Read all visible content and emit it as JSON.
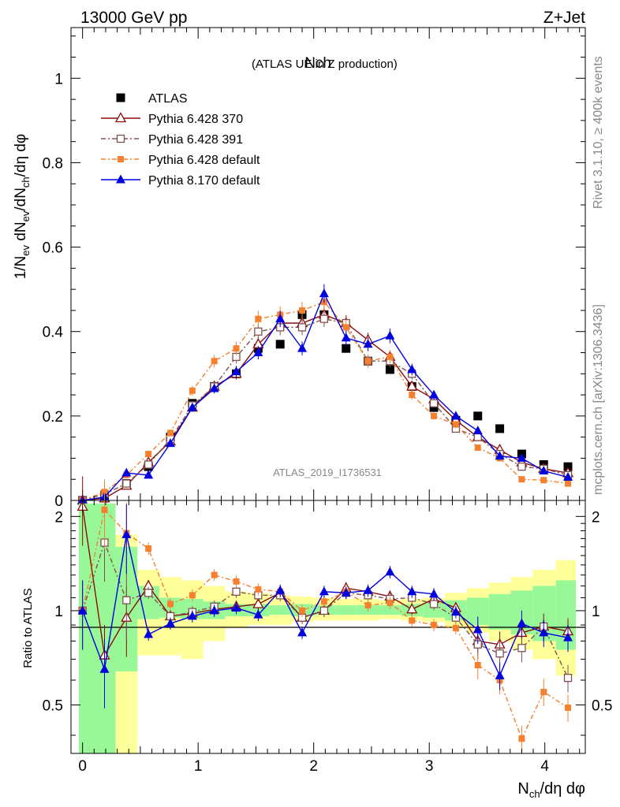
{
  "header": {
    "left": "13000 GeV pp",
    "right": "Z+Jet"
  },
  "side_labels": {
    "rivet": "Rivet 3.1.10, ≥ 400k events",
    "mcplots": "mcplots.cern.ch [arXiv:1306.3436]"
  },
  "chart_data": [
    {
      "type": "line",
      "title_main": "Nch",
      "title_sub": "(ATLAS UE in Z production)",
      "watermark": "ATLAS_2019_I1736531",
      "ylabel": "1/N_ev dN_ev/dN_ch/dη dφ",
      "xlabel": "N_ch/dη dφ",
      "xlim": [
        -0.1,
        4.35
      ],
      "ylim": [
        0,
        1.12
      ],
      "yticks": [
        "0",
        "0.2",
        "0.4",
        "0.6",
        "0.8",
        "1"
      ],
      "ytick_values": [
        0,
        0.2,
        0.4,
        0.6,
        0.8,
        1
      ],
      "xticks": [
        "0",
        "1",
        "2",
        "3",
        "4"
      ],
      "xtick_values": [
        0,
        1,
        2,
        3,
        4
      ],
      "x": [
        0.0,
        0.19,
        0.38,
        0.57,
        0.76,
        0.95,
        1.14,
        1.33,
        1.52,
        1.71,
        1.9,
        2.09,
        2.28,
        2.47,
        2.66,
        2.85,
        3.04,
        3.23,
        3.42,
        3.61,
        3.8,
        3.99,
        4.2
      ],
      "series": [
        {
          "name": "ATLAS",
          "style": "data",
          "values": [
            0.0,
            0.01,
            0.04,
            0.08,
            0.15,
            0.23,
            0.27,
            0.3,
            0.36,
            0.37,
            0.44,
            0.44,
            0.36,
            0.33,
            0.31,
            0.27,
            0.22,
            0.19,
            0.2,
            0.17,
            0.11,
            0.085,
            0.08
          ]
        },
        {
          "name": "Pythia 6.428 370",
          "style": "p370",
          "values": [
            0.0,
            0.005,
            0.035,
            0.09,
            0.14,
            0.22,
            0.27,
            0.3,
            0.37,
            0.42,
            0.42,
            0.44,
            0.42,
            0.38,
            0.34,
            0.27,
            0.24,
            0.19,
            0.15,
            0.12,
            0.09,
            0.075,
            0.065
          ]
        },
        {
          "name": "Pythia 6.428 391",
          "style": "p391",
          "values": [
            0.0,
            0.015,
            0.04,
            0.085,
            0.145,
            0.225,
            0.27,
            0.34,
            0.4,
            0.41,
            0.41,
            0.43,
            0.42,
            0.33,
            0.33,
            0.3,
            0.23,
            0.17,
            0.15,
            0.11,
            0.08,
            0.075,
            0.06
          ]
        },
        {
          "name": "Pythia 6.428 default",
          "style": "pdef",
          "values": [
            0.0,
            0.02,
            0.06,
            0.11,
            0.16,
            0.26,
            0.33,
            0.36,
            0.43,
            0.44,
            0.45,
            0.47,
            0.41,
            0.33,
            0.34,
            0.25,
            0.2,
            0.18,
            0.125,
            0.1,
            0.05,
            0.048,
            0.04
          ]
        },
        {
          "name": "Pythia 8.170 default",
          "style": "p8",
          "values": [
            0.0,
            0.008,
            0.065,
            0.06,
            0.135,
            0.22,
            0.265,
            0.305,
            0.35,
            0.43,
            0.36,
            0.49,
            0.385,
            0.37,
            0.39,
            0.31,
            0.25,
            0.2,
            0.165,
            0.105,
            0.1,
            0.07,
            0.055
          ]
        }
      ]
    },
    {
      "type": "line",
      "ylabel": "Ratio to ATLAS",
      "ylim": [
        0.35,
        2.25
      ],
      "yticks": [
        "0.5",
        "1",
        "2"
      ],
      "ytick_values": [
        0.5,
        1,
        2
      ],
      "x": [
        0.0,
        0.19,
        0.38,
        0.57,
        0.76,
        0.95,
        1.14,
        1.33,
        1.52,
        1.71,
        1.9,
        2.09,
        2.28,
        2.47,
        2.66,
        2.85,
        3.04,
        3.23,
        3.42,
        3.61,
        3.8,
        3.99,
        4.2
      ],
      "band_green": [
        [
          0.3,
          2.2
        ],
        [
          0.3,
          2.2
        ],
        [
          0.64,
          1.6
        ],
        [
          0.94,
          1.2
        ],
        [
          0.95,
          1.1
        ],
        [
          0.94,
          1.09
        ],
        [
          0.94,
          1.07
        ],
        [
          0.96,
          1.05
        ],
        [
          0.96,
          1.05
        ],
        [
          0.97,
          1.04
        ],
        [
          0.96,
          1.05
        ],
        [
          0.97,
          1.04
        ],
        [
          0.97,
          1.04
        ],
        [
          0.97,
          1.04
        ],
        [
          0.97,
          1.04
        ],
        [
          0.96,
          1.05
        ],
        [
          0.95,
          1.06
        ],
        [
          0.93,
          1.08
        ],
        [
          0.9,
          1.1
        ],
        [
          0.87,
          1.13
        ],
        [
          0.84,
          1.16
        ],
        [
          0.8,
          1.2
        ],
        [
          0.75,
          1.25
        ]
      ],
      "band_yellow": [
        [
          0.3,
          2.2
        ],
        [
          0.3,
          2.2
        ],
        [
          0.35,
          1.75
        ],
        [
          0.72,
          1.35
        ],
        [
          0.72,
          1.28
        ],
        [
          0.7,
          1.25
        ],
        [
          0.8,
          1.2
        ],
        [
          0.88,
          1.15
        ],
        [
          0.9,
          1.14
        ],
        [
          0.9,
          1.12
        ],
        [
          0.92,
          1.11
        ],
        [
          0.93,
          1.1
        ],
        [
          0.93,
          1.09
        ],
        [
          0.93,
          1.09
        ],
        [
          0.94,
          1.08
        ],
        [
          0.93,
          1.09
        ],
        [
          0.92,
          1.1
        ],
        [
          0.88,
          1.14
        ],
        [
          0.85,
          1.18
        ],
        [
          0.8,
          1.23
        ],
        [
          0.75,
          1.28
        ],
        [
          0.7,
          1.35
        ],
        [
          0.62,
          1.45
        ]
      ],
      "series": [
        {
          "name": "Pythia 6.428 370",
          "style": "p370",
          "values": [
            2.15,
            0.72,
            0.95,
            1.2,
            0.96,
            0.98,
            1.01,
            1.03,
            1.05,
            1.14,
            0.95,
            1.0,
            1.18,
            1.15,
            1.11,
            1.01,
            1.09,
            1.02,
            0.8,
            0.78,
            0.85,
            0.89,
            0.86
          ]
        },
        {
          "name": "Pythia 6.428 391",
          "style": "p391",
          "values": [
            1.0,
            1.65,
            1.08,
            1.14,
            0.96,
            0.99,
            1.03,
            1.15,
            1.12,
            1.12,
            0.95,
            1.0,
            1.14,
            1.12,
            1.09,
            1.1,
            1.05,
            0.95,
            0.78,
            0.73,
            0.76,
            0.89,
            0.61
          ]
        },
        {
          "name": "Pythia 6.428 default",
          "style": "pdef",
          "values": [
            1.0,
            2.1,
            1.77,
            1.58,
            1.05,
            1.12,
            1.3,
            1.24,
            1.17,
            1.15,
            1.0,
            1.07,
            1.15,
            1.04,
            1.06,
            0.93,
            0.9,
            0.88,
            0.67,
            0.6,
            0.39,
            0.55,
            0.49
          ]
        },
        {
          "name": "Pythia 8.170 default",
          "style": "p8",
          "values": [
            1.0,
            0.65,
            1.75,
            0.84,
            0.91,
            0.96,
            1.0,
            1.02,
            0.97,
            1.16,
            0.85,
            1.15,
            1.14,
            1.16,
            1.33,
            1.15,
            1.13,
            0.99,
            0.87,
            0.62,
            0.91,
            0.85,
            0.82
          ]
        }
      ]
    }
  ],
  "colors": {
    "ATLAS": "#000000",
    "p370": "#8b0a0a",
    "p391": "#805050",
    "pdef": "#f58030",
    "p8": "#0000e0",
    "band_green": "#98f898",
    "band_yellow": "#ffff9a"
  }
}
